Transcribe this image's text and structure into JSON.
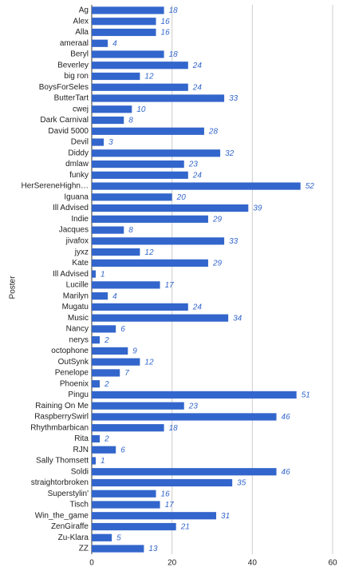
{
  "chart_data": {
    "type": "bar",
    "orientation": "horizontal",
    "y_label": "Poster",
    "categories": [
      "Ag",
      "Alex",
      "Alla",
      "ameraal",
      "Beryl",
      "Beverley",
      "big ron",
      "BoysForSeles",
      "ButterTart",
      "cwej",
      "Dark Carnival",
      "David 5000",
      "Devil",
      "Diddy",
      "dmlaw",
      "funky",
      "HerSereneHighn…",
      "Iguana",
      "Ill Advised",
      "Indie",
      "Jacques",
      "jivafox",
      "jyxz",
      "Kate",
      "Ill Advised",
      "Lucille",
      "Marilyn",
      "Mugatu",
      "Music",
      "Nancy",
      "nerys",
      "octophone",
      "OutSynk",
      "Penelope",
      "Phoenix",
      "Pingu",
      "Raining On Me",
      "RaspberrySwirl",
      "Rhythmbarbican",
      "Rita",
      "RJN",
      "Sally Thomsett",
      "Soldi",
      "straightorbroken",
      "Superstylin'",
      "Tisch",
      "Win_the_game",
      "ZenGiraffe",
      "Zu-Klara",
      "ZZ"
    ],
    "values": [
      18,
      16,
      16,
      4,
      18,
      24,
      12,
      24,
      33,
      10,
      8,
      28,
      3,
      32,
      23,
      24,
      52,
      20,
      39,
      29,
      8,
      33,
      12,
      29,
      1,
      17,
      4,
      24,
      34,
      6,
      2,
      9,
      12,
      7,
      2,
      51,
      23,
      46,
      18,
      2,
      6,
      1,
      46,
      35,
      16,
      17,
      31,
      21,
      5,
      13
    ],
    "color": "#3366cc",
    "xlim": [
      0,
      60
    ],
    "xticks": [
      0,
      20,
      40,
      60
    ],
    "grid": true
  }
}
